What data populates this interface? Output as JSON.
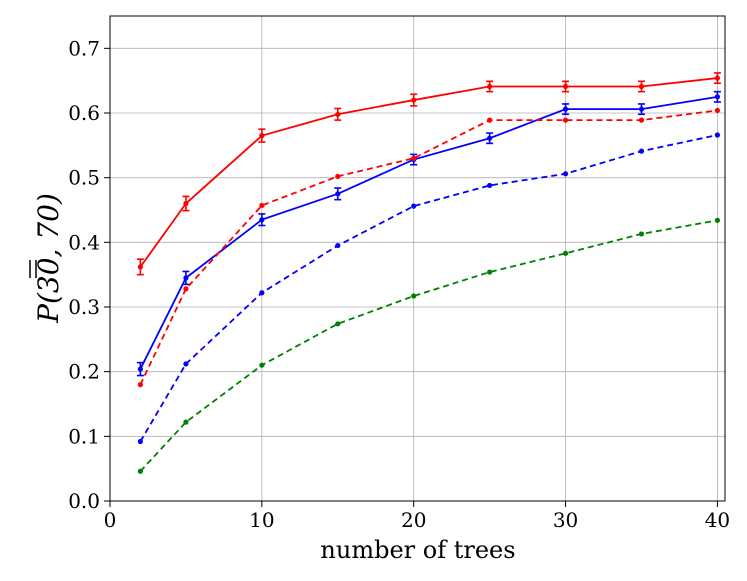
{
  "chart_data": {
    "type": "line",
    "title": "",
    "xlabel": "number of trees",
    "ylabel": "P(30, 70)",
    "xlim": [
      0,
      40.5
    ],
    "ylim": [
      0.0,
      0.75
    ],
    "xticks": [
      0,
      10,
      20,
      30,
      40
    ],
    "yticks": [
      0.0,
      0.1,
      0.2,
      0.3,
      0.4,
      0.5,
      0.6,
      0.7
    ],
    "xtick_labels": [
      "0",
      "10",
      "20",
      "30",
      "40"
    ],
    "ytick_labels": [
      "0.0",
      "0.1",
      "0.2",
      "0.3",
      "0.4",
      "0.5",
      "0.6",
      "0.7"
    ],
    "grid": true,
    "x": [
      2,
      5,
      10,
      15,
      20,
      25,
      30,
      35,
      40
    ],
    "series": [
      {
        "color": "#ff0000",
        "style": "solid",
        "errorbars": true,
        "values": [
          0.362,
          0.46,
          0.565,
          0.598,
          0.62,
          0.641,
          0.641,
          0.641,
          0.654
        ],
        "errors": [
          0.012,
          0.011,
          0.01,
          0.009,
          0.009,
          0.008,
          0.008,
          0.008,
          0.008
        ]
      },
      {
        "color": "#0000ff",
        "style": "solid",
        "errorbars": true,
        "values": [
          0.204,
          0.345,
          0.435,
          0.475,
          0.528,
          0.561,
          0.606,
          0.606,
          0.625
        ],
        "errors": [
          0.01,
          0.01,
          0.009,
          0.009,
          0.008,
          0.008,
          0.008,
          0.008,
          0.008
        ]
      },
      {
        "color": "#ff0000",
        "style": "dashed",
        "errorbars": false,
        "values": [
          0.18,
          0.328,
          0.457,
          0.502,
          0.53,
          0.589,
          0.589,
          0.589,
          0.604
        ]
      },
      {
        "color": "#0000ff",
        "style": "dashed",
        "errorbars": false,
        "values": [
          0.092,
          0.212,
          0.322,
          0.395,
          0.456,
          0.488,
          0.506,
          0.541,
          0.566
        ]
      },
      {
        "color": "#008000",
        "style": "dashed",
        "errorbars": false,
        "values": [
          0.046,
          0.122,
          0.21,
          0.274,
          0.317,
          0.354,
          0.383,
          0.413,
          0.434
        ]
      }
    ]
  }
}
